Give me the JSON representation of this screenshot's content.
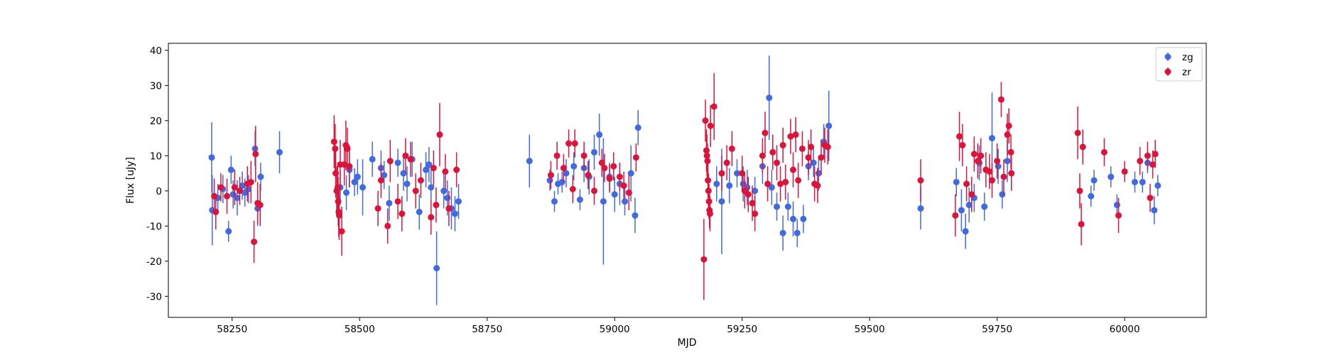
{
  "chart_data": {
    "type": "scatter",
    "xlabel": "MJD",
    "ylabel": "Flux [uJy]",
    "xlim": [
      58125,
      60160
    ],
    "ylim": [
      -36,
      42
    ],
    "xticks": [
      58250,
      58500,
      58750,
      59000,
      59250,
      59500,
      59750,
      60000
    ],
    "yticks": [
      -30,
      -20,
      -10,
      0,
      10,
      20,
      30,
      40
    ],
    "grid": false,
    "legend_position": "top-right",
    "error_bars": true,
    "series": [
      {
        "name": "zg",
        "color": "#4169e1",
        "points": [
          [
            58210,
            9.5,
            10
          ],
          [
            58211,
            -5.5,
            10
          ],
          [
            58222,
            -2,
            4
          ],
          [
            58232,
            0.5,
            4
          ],
          [
            58243,
            -11.5,
            3
          ],
          [
            58248,
            6,
            4
          ],
          [
            58252,
            -1,
            4
          ],
          [
            58260,
            -2,
            5
          ],
          [
            58270,
            1.5,
            4
          ],
          [
            58275,
            -0.5,
            4
          ],
          [
            58282,
            0.5,
            4
          ],
          [
            58295,
            12,
            5
          ],
          [
            58300,
            -5,
            5
          ],
          [
            58306,
            4,
            4
          ],
          [
            58343,
            11,
            6
          ],
          [
            58462,
            1,
            5
          ],
          [
            58474,
            -0.5,
            5
          ],
          [
            58480,
            6,
            5
          ],
          [
            58490,
            2.5,
            4
          ],
          [
            58496,
            4,
            5
          ],
          [
            58506,
            1,
            8
          ],
          [
            58525,
            9,
            5
          ],
          [
            58542,
            6.5,
            5
          ],
          [
            58548,
            4.5,
            4
          ],
          [
            58558,
            -3.5,
            5
          ],
          [
            58575,
            8,
            4
          ],
          [
            58586,
            5,
            5
          ],
          [
            58593,
            2,
            5
          ],
          [
            58603,
            9,
            5
          ],
          [
            58617,
            -6,
            5
          ],
          [
            58630,
            6,
            5
          ],
          [
            58636,
            7.5,
            5
          ],
          [
            58640,
            1,
            5
          ],
          [
            58651,
            -22,
            10.5
          ],
          [
            58665,
            0,
            5
          ],
          [
            58672,
            -2,
            5
          ],
          [
            58680,
            -5,
            6
          ],
          [
            58687,
            -6.5,
            5
          ],
          [
            58694,
            -3,
            5
          ],
          [
            58833,
            8.5,
            7.5
          ],
          [
            58873,
            3,
            3
          ],
          [
            58882,
            -3,
            3
          ],
          [
            58889,
            2,
            3
          ],
          [
            58897,
            2.5,
            3
          ],
          [
            58905,
            5,
            4
          ],
          [
            58920,
            7,
            4
          ],
          [
            58932,
            -2.5,
            3
          ],
          [
            58940,
            6.5,
            4
          ],
          [
            58950,
            4,
            5
          ],
          [
            58960,
            11,
            5
          ],
          [
            58970,
            16,
            6
          ],
          [
            58978,
            -3,
            18
          ],
          [
            58990,
            4,
            4
          ],
          [
            59000,
            -1,
            5
          ],
          [
            59010,
            2,
            6
          ],
          [
            59020,
            -3,
            4
          ],
          [
            59032,
            5,
            8
          ],
          [
            59040,
            -7,
            5
          ],
          [
            59046,
            18,
            5
          ],
          [
            59200,
            2,
            5
          ],
          [
            59210,
            -3,
            15
          ],
          [
            59225,
            1.5,
            5
          ],
          [
            59240,
            5,
            4
          ],
          [
            59252,
            2,
            5
          ],
          [
            59260,
            1,
            5
          ],
          [
            59275,
            0,
            4
          ],
          [
            59290,
            7,
            5
          ],
          [
            59303,
            26.5,
            12
          ],
          [
            59308,
            1,
            5
          ],
          [
            59318,
            -4.5,
            4
          ],
          [
            59330,
            -12,
            5
          ],
          [
            59340,
            -4.5,
            4
          ],
          [
            59350,
            -8,
            5
          ],
          [
            59358,
            -12,
            4
          ],
          [
            59370,
            -8,
            4
          ],
          [
            59380,
            7,
            4
          ],
          [
            59390,
            8,
            4
          ],
          [
            59400,
            5,
            5
          ],
          [
            59410,
            14,
            5
          ],
          [
            59420,
            18.5,
            10
          ],
          [
            59600,
            -5,
            6
          ],
          [
            59670,
            2.5,
            4
          ],
          [
            59680,
            -5.5,
            6
          ],
          [
            59688,
            -11.5,
            5
          ],
          [
            59695,
            -4,
            5
          ],
          [
            59705,
            -2,
            4
          ],
          [
            59715,
            8,
            5
          ],
          [
            59725,
            -4.5,
            4
          ],
          [
            59740,
            15,
            13
          ],
          [
            59752,
            7,
            5
          ],
          [
            59760,
            -1,
            4
          ],
          [
            59770,
            8.5,
            6
          ],
          [
            59934,
            -1.5,
            3
          ],
          [
            59940,
            3,
            3
          ],
          [
            59973,
            4,
            3
          ],
          [
            59985,
            -4,
            3
          ],
          [
            60020,
            2.5,
            3
          ],
          [
            60035,
            2.5,
            3
          ],
          [
            60045,
            8,
            3
          ],
          [
            60058,
            -5.5,
            4
          ],
          [
            60065,
            1.5,
            3
          ]
        ]
      },
      {
        "name": "zr",
        "color": "#dc143c",
        "points": [
          [
            58215,
            -1.5,
            5
          ],
          [
            58218,
            -6,
            5
          ],
          [
            58228,
            1,
            4
          ],
          [
            58240,
            -1.5,
            5
          ],
          [
            58255,
            1,
            5
          ],
          [
            58265,
            0,
            4
          ],
          [
            58280,
            2,
            5
          ],
          [
            58287,
            2.5,
            6
          ],
          [
            58293,
            -14.5,
            6
          ],
          [
            58296,
            10.5,
            8
          ],
          [
            58300,
            -3.5,
            6
          ],
          [
            58305,
            -4,
            6
          ],
          [
            58450,
            14,
            7.5
          ],
          [
            58452,
            12,
            7
          ],
          [
            58453,
            5,
            7
          ],
          [
            58455,
            0,
            7
          ],
          [
            58457,
            1,
            7
          ],
          [
            58458,
            -3,
            7
          ],
          [
            58459,
            -6,
            7
          ],
          [
            58460,
            -7,
            7
          ],
          [
            58462,
            7.5,
            7
          ],
          [
            58465,
            -11.5,
            7
          ],
          [
            58470,
            7.5,
            6
          ],
          [
            58473,
            13,
            7
          ],
          [
            58476,
            12,
            6
          ],
          [
            58480,
            7,
            6
          ],
          [
            58536,
            -5,
            5
          ],
          [
            58542,
            3,
            5
          ],
          [
            58555,
            -10,
            5
          ],
          [
            58560,
            8.5,
            6
          ],
          [
            58575,
            -3,
            5
          ],
          [
            58583,
            -6.5,
            5
          ],
          [
            58590,
            10,
            5
          ],
          [
            58600,
            9,
            5
          ],
          [
            58610,
            0,
            5
          ],
          [
            58620,
            3,
            5
          ],
          [
            58640,
            -7.5,
            5
          ],
          [
            58645,
            6.5,
            5
          ],
          [
            58650,
            -4,
            5
          ],
          [
            58657,
            16,
            9
          ],
          [
            58668,
            5.5,
            5
          ],
          [
            58675,
            -5,
            5
          ],
          [
            58690,
            6,
            5
          ],
          [
            58875,
            4.5,
            4
          ],
          [
            58887,
            10,
            4
          ],
          [
            58900,
            6.5,
            4
          ],
          [
            58910,
            13.5,
            4
          ],
          [
            58918,
            0.5,
            4
          ],
          [
            58922,
            13.5,
            4
          ],
          [
            58940,
            10,
            4
          ],
          [
            58948,
            4.5,
            4
          ],
          [
            58960,
            0,
            4
          ],
          [
            58975,
            8,
            4
          ],
          [
            58980,
            6.5,
            4
          ],
          [
            58990,
            3.5,
            4
          ],
          [
            58998,
            7,
            4
          ],
          [
            59010,
            4,
            4
          ],
          [
            59018,
            1.5,
            4
          ],
          [
            59028,
            -0.5,
            5
          ],
          [
            59042,
            9.5,
            4
          ],
          [
            59175,
            -19.5,
            11.5
          ],
          [
            59178,
            20,
            6
          ],
          [
            59180,
            11.5,
            6
          ],
          [
            59181,
            10,
            6
          ],
          [
            59182,
            8.5,
            5
          ],
          [
            59183,
            3,
            5
          ],
          [
            59184,
            0,
            5
          ],
          [
            59185,
            -3,
            5
          ],
          [
            59186,
            -5.5,
            5
          ],
          [
            59187,
            -6.5,
            5
          ],
          [
            59188,
            18.5,
            6
          ],
          [
            59195,
            24,
            9.5
          ],
          [
            59210,
            5,
            5
          ],
          [
            59220,
            8,
            5
          ],
          [
            59230,
            12,
            5
          ],
          [
            59250,
            5,
            5
          ],
          [
            59255,
            0,
            5
          ],
          [
            59262,
            -1,
            5
          ],
          [
            59270,
            -3.5,
            5
          ],
          [
            59275,
            -6.5,
            5
          ],
          [
            59290,
            10,
            5
          ],
          [
            59295,
            16.5,
            6
          ],
          [
            59300,
            2,
            5
          ],
          [
            59310,
            11,
            5
          ],
          [
            59318,
            8,
            5
          ],
          [
            59325,
            2,
            5
          ],
          [
            59330,
            13,
            5
          ],
          [
            59335,
            2.5,
            5
          ],
          [
            59345,
            15.5,
            5
          ],
          [
            59350,
            6,
            5
          ],
          [
            59355,
            16,
            5
          ],
          [
            59360,
            3,
            5
          ],
          [
            59368,
            12,
            5
          ],
          [
            59380,
            9.5,
            5
          ],
          [
            59385,
            12.5,
            5
          ],
          [
            59392,
            2,
            5
          ],
          [
            59398,
            1.5,
            5
          ],
          [
            59405,
            9.5,
            5
          ],
          [
            59412,
            13,
            5
          ],
          [
            59418,
            12.5,
            5
          ],
          [
            59600,
            3,
            6
          ],
          [
            59668,
            -7,
            6
          ],
          [
            59676,
            15.5,
            7
          ],
          [
            59682,
            13,
            6
          ],
          [
            59690,
            2,
            5
          ],
          [
            59700,
            -1,
            5
          ],
          [
            59705,
            10.5,
            5
          ],
          [
            59712,
            8.5,
            5
          ],
          [
            59718,
            10,
            5
          ],
          [
            59728,
            6,
            5
          ],
          [
            59735,
            5.5,
            5
          ],
          [
            59740,
            3,
            5
          ],
          [
            59750,
            8.5,
            5
          ],
          [
            59758,
            26,
            5
          ],
          [
            59763,
            4,
            5
          ],
          [
            59770,
            16,
            6
          ],
          [
            59773,
            18.5,
            5
          ],
          [
            59777,
            11,
            5
          ],
          [
            59778,
            5,
            5
          ],
          [
            59908,
            16.5,
            7.5
          ],
          [
            59912,
            0,
            5
          ],
          [
            59915,
            -9.5,
            6
          ],
          [
            59918,
            12.5,
            5
          ],
          [
            59960,
            11,
            4
          ],
          [
            59988,
            -7,
            5
          ],
          [
            60000,
            5.5,
            3
          ],
          [
            60030,
            8.5,
            4
          ],
          [
            60045,
            10,
            4
          ],
          [
            60050,
            -2,
            4
          ],
          [
            60055,
            7.5,
            4
          ],
          [
            60060,
            10.5,
            4
          ]
        ]
      }
    ]
  }
}
